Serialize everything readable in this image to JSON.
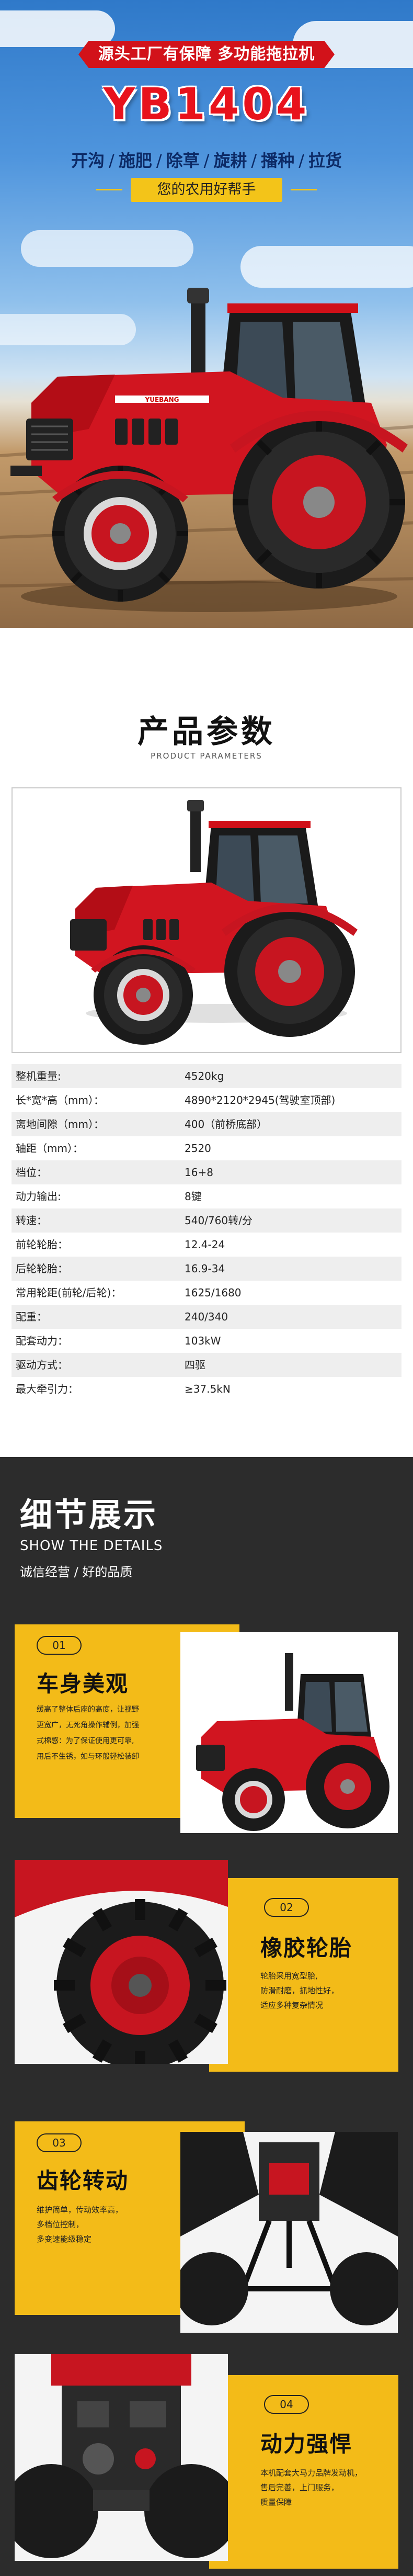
{
  "hero": {
    "ribbon": "源头工厂有保障 多功能拖拉机",
    "model": "YB1404",
    "features": [
      "开沟",
      "施肥",
      "除草",
      "旋耕",
      "播种",
      "拉货"
    ],
    "slogan": "您的农用好帮手",
    "tractor_brand": "YUEBANG"
  },
  "spec": {
    "title": "产品参数",
    "subtitle": "PRODUCT PARAMETERS",
    "rows": [
      {
        "k": "整机重量:",
        "v": "4520kg"
      },
      {
        "k": "长*宽*高（mm）：",
        "v": "4890*2120*2945(驾驶室顶部)"
      },
      {
        "k": "离地间隙（mm）：",
        "v": "400（前桥底部）"
      },
      {
        "k": "轴距（mm）：",
        "v": "2520"
      },
      {
        "k": "档位：",
        "v": "16+8"
      },
      {
        "k": "动力输出:",
        "v": "8键"
      },
      {
        "k": "转速：",
        "v": "540/760转/分"
      },
      {
        "k": "前轮轮胎：",
        "v": "12.4-24"
      },
      {
        "k": "后轮轮胎：",
        "v": "16.9-34"
      },
      {
        "k": "常用轮距(前轮/后轮)：",
        "v": "1625/1680"
      },
      {
        "k": "配重：",
        "v": "240/340"
      },
      {
        "k": "配套动力：",
        "v": "103kW"
      },
      {
        "k": "驱动方式：",
        "v": "四驱"
      },
      {
        "k": "最大牵引力：",
        "v": "≥37.5kN"
      }
    ]
  },
  "details": {
    "title": "细节展示",
    "subtitle_en": "SHOW THE DETAILS",
    "subtitle_cn": "诚信经营 / 好的品质",
    "cards": [
      {
        "num": "01",
        "title": "车身美观",
        "desc": [
          "缓高了整体后座的高度，让视野",
          "更宽广，无死角操作辅例，加强",
          "式棉感：为了保证使用更可靠,",
          "用后不生锈，如与环般轻松装卸"
        ]
      },
      {
        "num": "02",
        "title": "橡胶轮胎",
        "desc": [
          "轮胎采用宽型胎,",
          "防滑耐磨，抓地性好，",
          "适应多种复杂情况"
        ]
      },
      {
        "num": "03",
        "title": "齿轮转动",
        "desc": [
          "维护简单，传动效率高，",
          "多档位控制，",
          "多变速能级稳定"
        ]
      },
      {
        "num": "04",
        "title": "动力强悍",
        "desc": [
          "本机配套大马力品牌发动机，",
          "售后完善，上门服务，",
          "质量保障"
        ]
      }
    ]
  }
}
